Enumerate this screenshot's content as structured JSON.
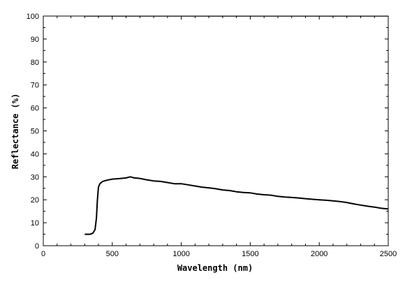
{
  "chart_data": {
    "type": "line",
    "title": "",
    "xlabel": "Wavelength (nm)",
    "ylabel": "Reflectance (%)",
    "xlim": [
      0,
      2500
    ],
    "ylim": [
      0,
      100
    ],
    "x_ticks": [
      0,
      500,
      1000,
      1500,
      2000,
      2500
    ],
    "y_ticks": [
      0,
      10,
      20,
      30,
      40,
      50,
      60,
      70,
      80,
      90,
      100
    ],
    "grid": false,
    "legend": "none",
    "series": [
      {
        "x": [
          300,
          340,
          360,
          375,
          385,
          392,
          400,
          410,
          430,
          460,
          500,
          550,
          600,
          630,
          660,
          700,
          750,
          800,
          850,
          900,
          950,
          1000,
          1050,
          1100,
          1150,
          1200,
          1250,
          1300,
          1350,
          1400,
          1450,
          1500,
          1550,
          1600,
          1650,
          1700,
          1750,
          1800,
          1850,
          1900,
          1950,
          2000,
          2050,
          2100,
          2150,
          2200,
          2250,
          2300,
          2350,
          2400,
          2450,
          2500
        ],
        "y": [
          5,
          5,
          5.5,
          7,
          12,
          20,
          25.5,
          27,
          28,
          28.5,
          29,
          29.2,
          29.5,
          30,
          29.5,
          29.3,
          28.7,
          28.2,
          28,
          27.5,
          27,
          27,
          26.5,
          26,
          25.5,
          25.2,
          24.8,
          24.3,
          24,
          23.5,
          23.2,
          23,
          22.5,
          22.2,
          22,
          21.5,
          21.2,
          21,
          20.8,
          20.5,
          20.2,
          20,
          19.8,
          19.5,
          19.2,
          18.8,
          18.2,
          17.7,
          17.2,
          16.8,
          16.3,
          16
        ]
      }
    ],
    "reference_line": {
      "y": 100,
      "x_range": [
        300,
        2500
      ]
    }
  }
}
